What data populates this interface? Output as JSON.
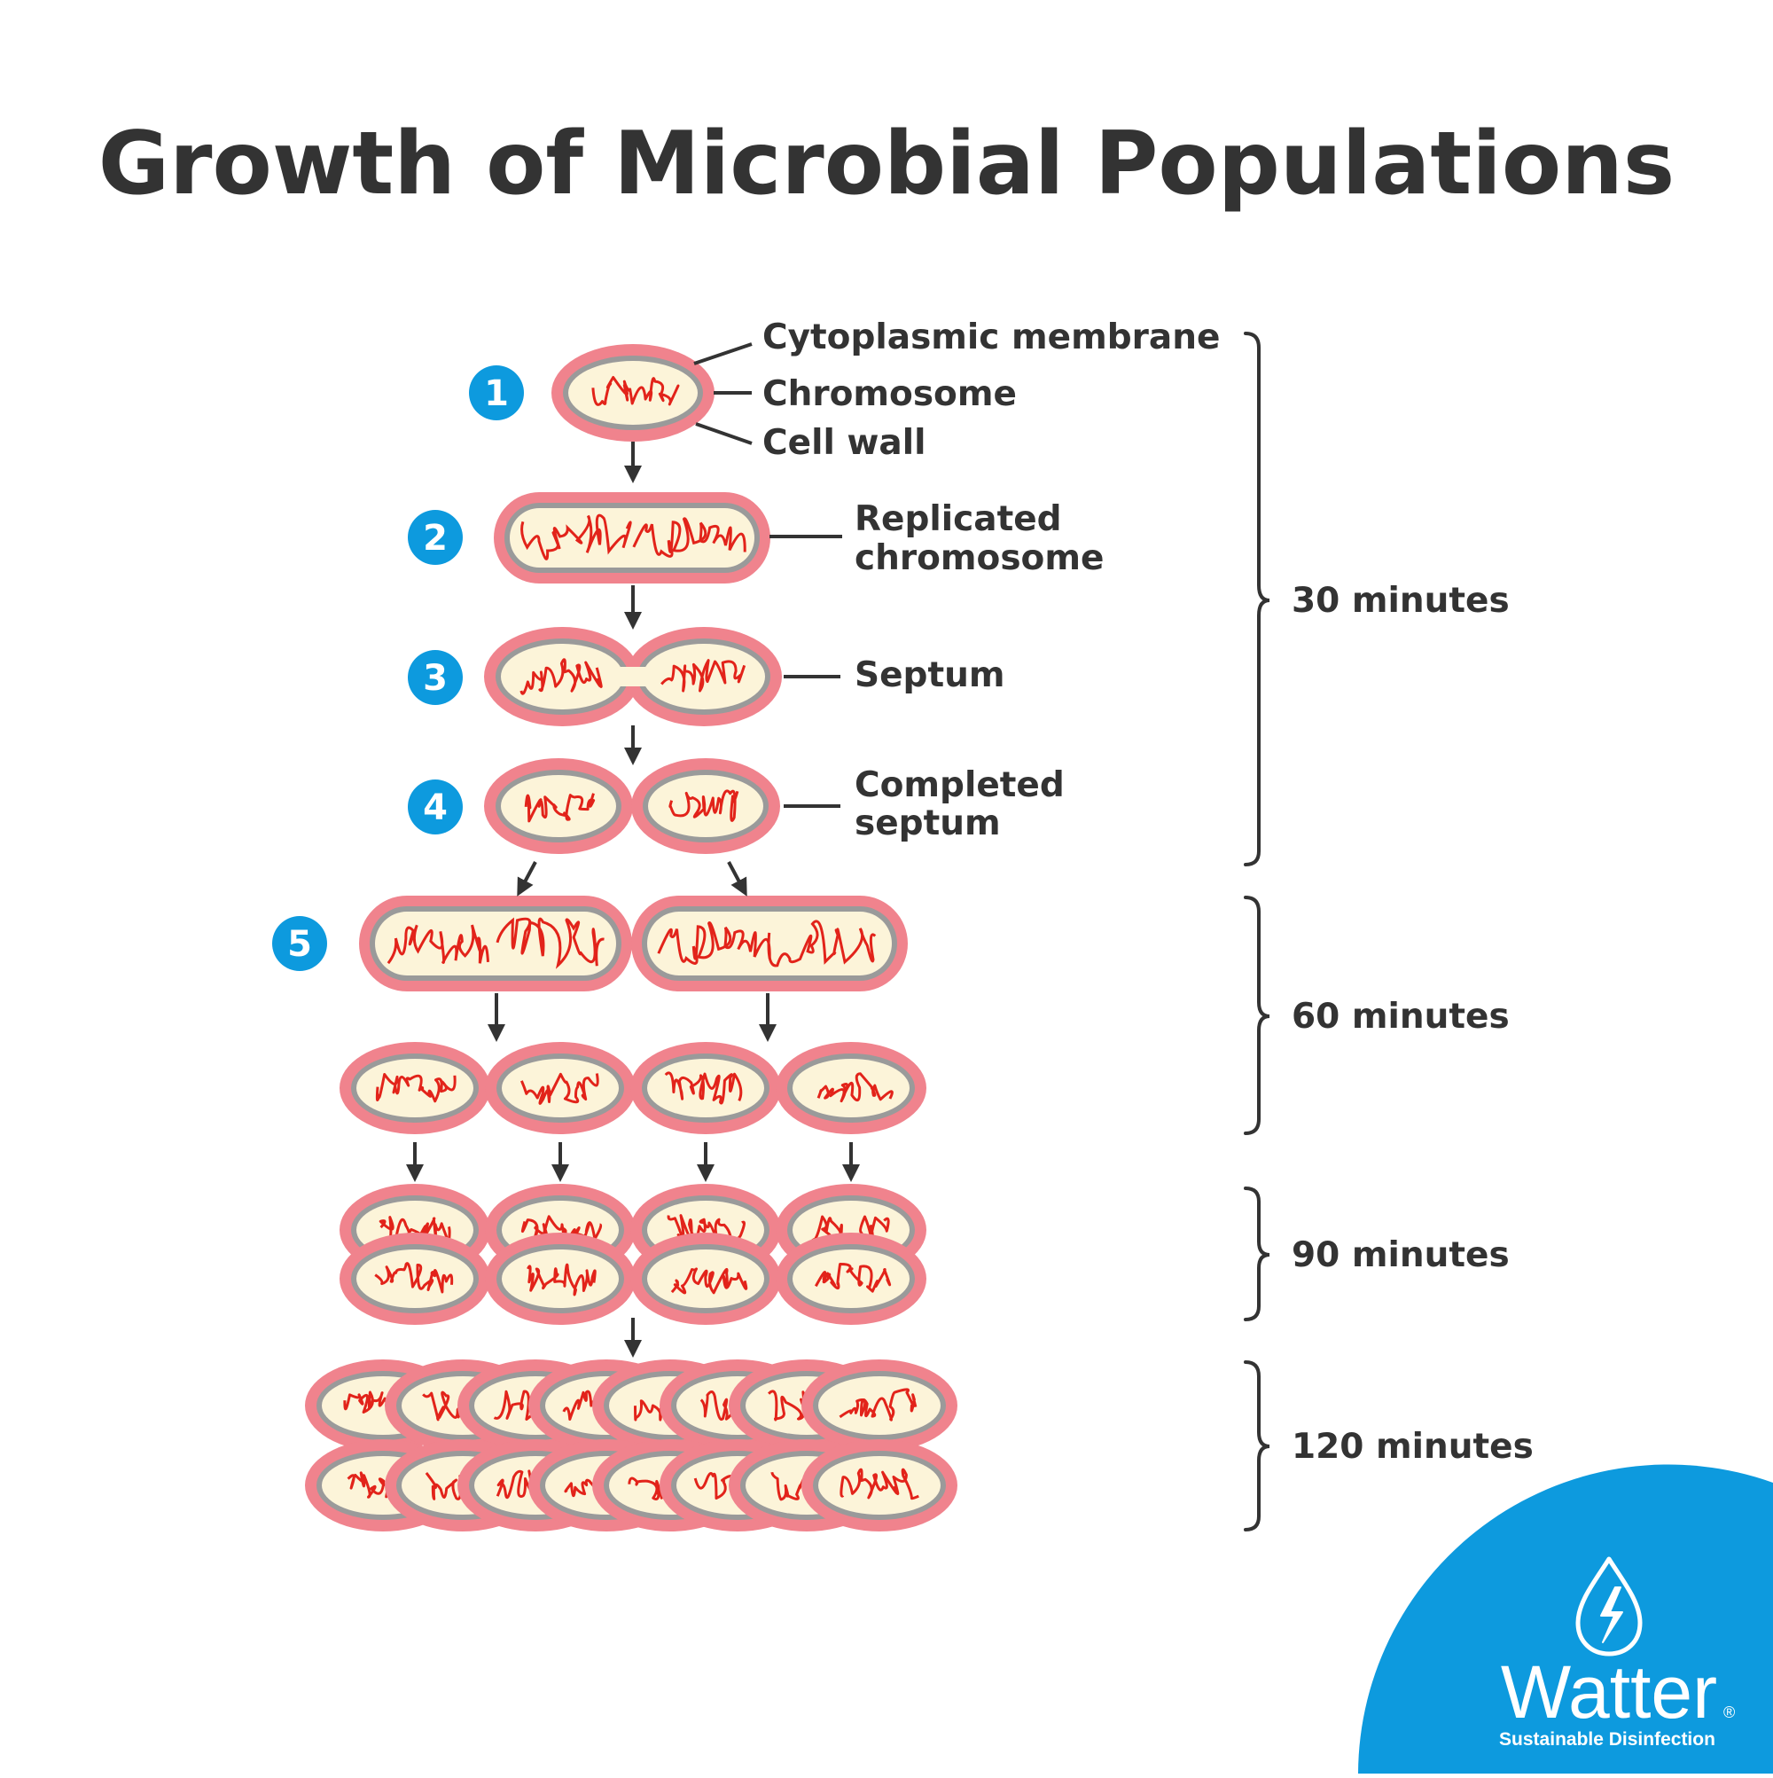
{
  "title": "Growth of Microbial Populations",
  "steps": [
    "1",
    "2",
    "3",
    "4",
    "5"
  ],
  "labels": {
    "cytoplasmic_membrane": "Cytoplasmic membrane",
    "chromosome": "Chromosome",
    "cell_wall": "Cell wall",
    "replicated_chromosome_line1": "Replicated",
    "replicated_chromosome_line2": "chromosome",
    "septum": "Septum",
    "completed_septum_line1": "Completed",
    "completed_septum_line2": "septum"
  },
  "time_intervals": [
    "30 minutes",
    "60 minutes",
    "90 minutes",
    "120 minutes"
  ],
  "logo": {
    "name": "Watter",
    "registered": "®",
    "tagline": "Sustainable Disinfection",
    "icon": "water-drop-lightning-icon"
  },
  "colors": {
    "cell_wall": "#f0838d",
    "membrane": "#9a9a9a",
    "cytoplasm": "#fcf4d9",
    "chromosome": "#e2231a",
    "step_badge": "#0d9ade",
    "text": "#333333",
    "logo_bg": "#0d9ade"
  }
}
